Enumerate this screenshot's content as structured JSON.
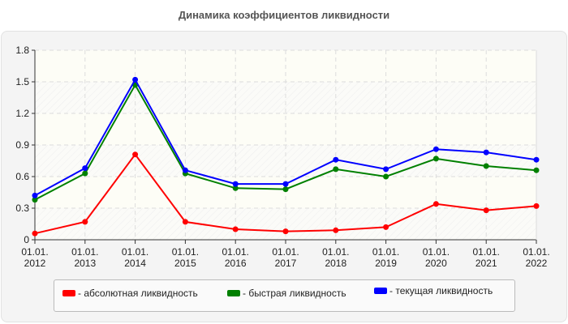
{
  "chart_data": {
    "type": "line",
    "title": "Динамика коэффициентов ликвидности",
    "xlabel": "",
    "ylabel": "",
    "ylim": [
      0,
      1.8
    ],
    "yticks": [
      "0",
      "0.3",
      "0.6",
      "0.9",
      "1.2",
      "1.5",
      "1.8"
    ],
    "x": [
      "01.01.2012",
      "01.01.2013",
      "01.01.2014",
      "01.01.2015",
      "01.01.2016",
      "01.01.2017",
      "01.01.2018",
      "01.01.2019",
      "01.01.2020",
      "01.01.2021",
      "01.01.2022"
    ],
    "x_line1": [
      "01.01.",
      "01.01.",
      "01.01.",
      "01.01.",
      "01.01.",
      "01.01.",
      "01.01.",
      "01.01.",
      "01.01.",
      "01.01.",
      "01.01."
    ],
    "x_line2": [
      "2012",
      "2013",
      "2014",
      "2015",
      "2016",
      "2017",
      "2018",
      "2019",
      "2020",
      "2021",
      "2022"
    ],
    "grid": true,
    "legend_position": "bottom",
    "series": [
      {
        "name": "- абсолютная ликвидность",
        "color": "#ff0000",
        "values": [
          0.06,
          0.17,
          0.81,
          0.17,
          0.1,
          0.08,
          0.09,
          0.12,
          0.34,
          0.28,
          0.32
        ]
      },
      {
        "name": "- быстрая ликвидность",
        "color": "#008000",
        "values": [
          0.38,
          0.63,
          1.47,
          0.63,
          0.49,
          0.48,
          0.67,
          0.6,
          0.77,
          0.7,
          0.66
        ]
      },
      {
        "name": "- текущая ликвидность",
        "color": "#0000ff",
        "values": [
          0.42,
          0.68,
          1.52,
          0.66,
          0.53,
          0.53,
          0.76,
          0.67,
          0.86,
          0.83,
          0.76
        ]
      }
    ]
  },
  "legend": {
    "items": [
      {
        "label": "- абсолютная ликвидность",
        "color": "#ff0000"
      },
      {
        "label": "- быстрая ликвидность",
        "color": "#008000"
      },
      {
        "label": "- текущая ликвидность",
        "color": "#0000ff"
      }
    ]
  }
}
